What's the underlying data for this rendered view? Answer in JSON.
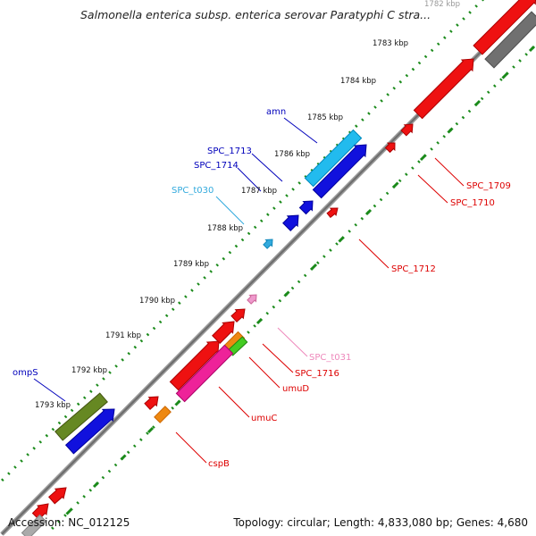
{
  "title": "Salmonella enterica subsp. enterica serovar Paratyphi C stra...",
  "footer": {
    "accession": "Accession: NC_012125",
    "stats": "Topology: circular; Length: 4,833,080 bp; Genes: 4,680"
  },
  "colors": {
    "backbone": "#808080",
    "tick": "#1a8a1a",
    "kbp_label": "#111111",
    "forward_label": "#0000bb",
    "reverse_label": "#dd0000"
  },
  "kbp_ticks": [
    {
      "label": "1782 kbp",
      "faded": true
    },
    {
      "label": "1783 kbp"
    },
    {
      "label": "1784 kbp"
    },
    {
      "label": "1785 kbp"
    },
    {
      "label": "1786 kbp"
    },
    {
      "label": "1787 kbp"
    },
    {
      "label": "1788 kbp"
    },
    {
      "label": "1789 kbp"
    },
    {
      "label": "1790 kbp"
    },
    {
      "label": "1791 kbp"
    },
    {
      "label": "1792 kbp"
    },
    {
      "label": "1793 kbp"
    }
  ],
  "gene_labels": [
    {
      "text": "amn",
      "color": "#0000bb"
    },
    {
      "text": "SPC_1713",
      "color": "#0000bb"
    },
    {
      "text": "SPC_1714",
      "color": "#0000bb"
    },
    {
      "text": "SPC_t030",
      "color": "#33aadd"
    },
    {
      "text": "ompS",
      "color": "#0000bb"
    },
    {
      "text": "SPC_1709",
      "color": "#dd0000"
    },
    {
      "text": "SPC_1710",
      "color": "#dd0000"
    },
    {
      "text": "SPC_1712",
      "color": "#dd0000"
    },
    {
      "text": "SPC_t031",
      "color": "#ee88bb"
    },
    {
      "text": "SPC_1716",
      "color": "#dd0000"
    },
    {
      "text": "umuD",
      "color": "#dd0000"
    },
    {
      "text": "umuC",
      "color": "#dd0000"
    },
    {
      "text": "cspB",
      "color": "#dd0000"
    }
  ]
}
